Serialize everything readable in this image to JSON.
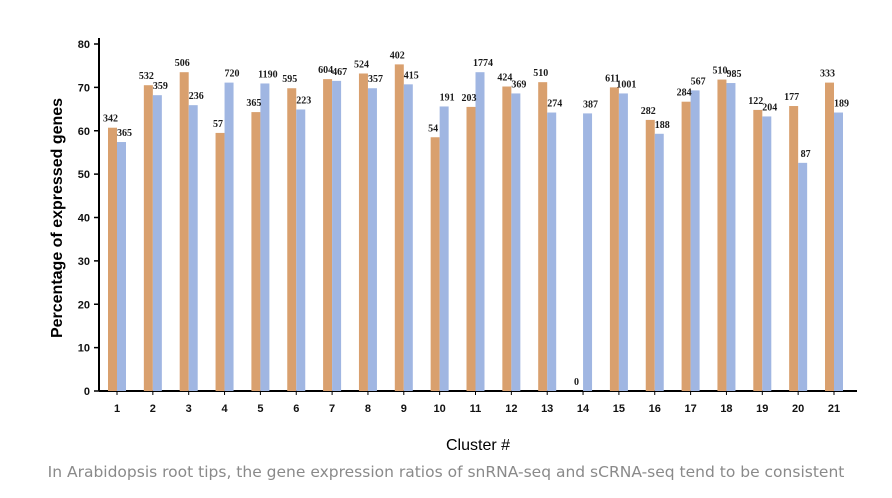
{
  "chart_data": {
    "type": "bar",
    "title": "",
    "xlabel": "Cluster #",
    "ylabel": "Percentage of expressed genes",
    "ylim": [
      0,
      80
    ],
    "yticks": [
      0,
      10,
      20,
      30,
      40,
      50,
      60,
      70,
      80
    ],
    "grid": false,
    "categories": [
      "1",
      "2",
      "3",
      "4",
      "5",
      "6",
      "7",
      "8",
      "9",
      "10",
      "11",
      "12",
      "13",
      "14",
      "15",
      "16",
      "17",
      "18",
      "19",
      "20",
      "21"
    ],
    "series": [
      {
        "color": "#d9a06e",
        "values": [
          60.7,
          70.5,
          73.5,
          59.5,
          64.3,
          69.8,
          71.9,
          73.2,
          75.3,
          58.5,
          65.5,
          70.2,
          71.2,
          0,
          70.0,
          62.5,
          66.7,
          71.8,
          64.8,
          65.7,
          71.1
        ],
        "labels": [
          "342",
          "532",
          "506",
          "57",
          "365",
          "595",
          "604",
          "524",
          "402",
          "54",
          "203",
          "424",
          "510",
          "0",
          "611",
          "282",
          "284",
          "510",
          "122",
          "177",
          "333"
        ]
      },
      {
        "color": "#a0b6e2",
        "values": [
          57.4,
          68.2,
          65.9,
          71.1,
          70.9,
          64.9,
          71.5,
          69.8,
          70.7,
          65.6,
          73.5,
          68.6,
          64.2,
          64.0,
          68.6,
          59.3,
          69.3,
          71.0,
          63.3,
          52.6,
          64.2
        ],
        "labels": [
          "365",
          "359",
          "236",
          "720",
          "1190",
          "223",
          "467",
          "357",
          "415",
          "191",
          "1774",
          "369",
          "274",
          "387",
          "1001",
          "188",
          "567",
          "985",
          "204",
          "87",
          "189"
        ]
      }
    ]
  },
  "caption": "In Arabidopsis root tips, the gene expression ratios of snRNA-seq and sCRNA-seq tend to be consistent"
}
